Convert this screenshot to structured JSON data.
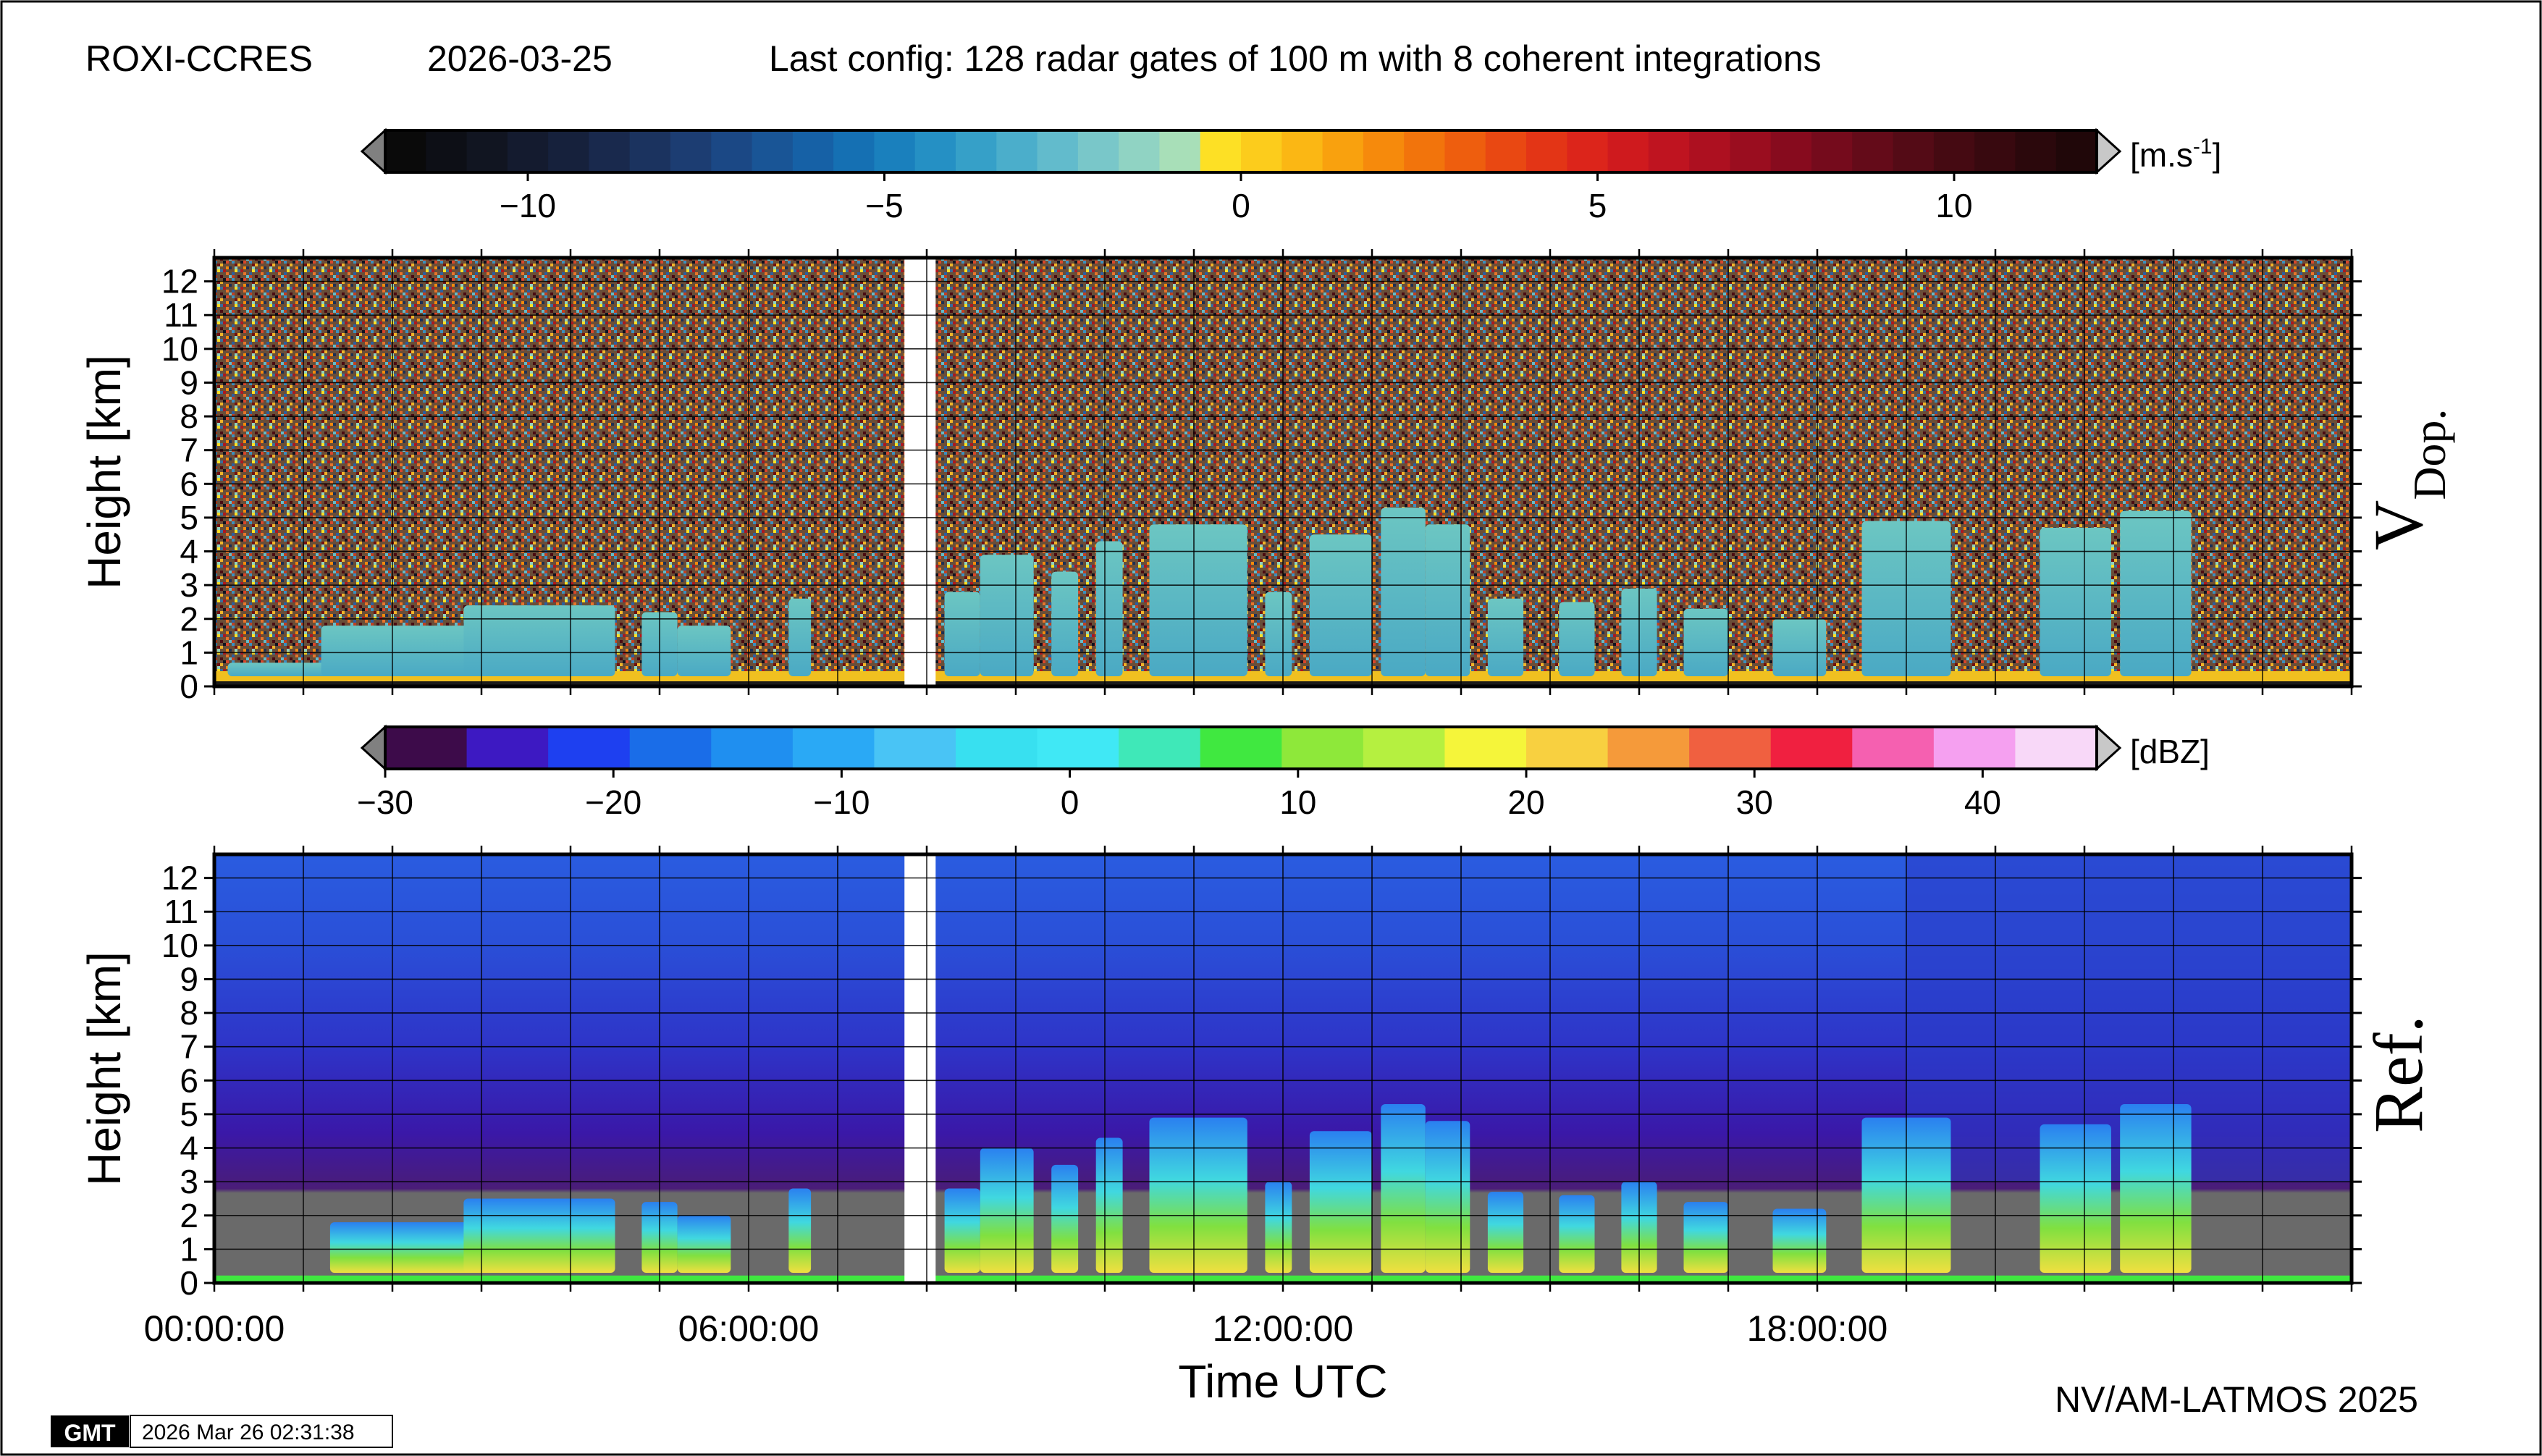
{
  "header": {
    "station": "ROXI-CCRES",
    "date": "2026-03-25",
    "config": "Last config: 128 radar gates of 100 m with 8 coherent integrations"
  },
  "colorbars": [
    {
      "unit": "[m.s",
      "unit_sup": "-1",
      "unit_close": "]",
      "range": [
        -12,
        12
      ],
      "tick_values": [
        -10,
        -5,
        0,
        5,
        10
      ],
      "tick_labels": [
        "−10",
        "−5",
        "0",
        "5",
        "10"
      ],
      "colors": [
        "#0a0a0a",
        "#0d0f16",
        "#111521",
        "#141b2f",
        "#16213c",
        "#19294d",
        "#1b335f",
        "#1c3d72",
        "#1b4885",
        "#195596",
        "#1661a6",
        "#1570b3",
        "#1a80bd",
        "#2590c4",
        "#36a0c8",
        "#4baecb",
        "#62bbcc",
        "#79c7c9",
        "#90d3c3",
        "#a8dfb8",
        "#fde025",
        "#fccc1c",
        "#fbb714",
        "#f9a10e",
        "#f68a0c",
        "#f2740c",
        "#ee5e0e",
        "#e94812",
        "#e33516",
        "#dc251b",
        "#cf1a1e",
        "#bf1420",
        "#ad1020",
        "#9a0d1f",
        "#870b1e",
        "#750b1c",
        "#640b19",
        "#540b16",
        "#450a12",
        "#38090f",
        "#2b080c",
        "#200709"
      ],
      "under_color": "#808080",
      "over_color": "#c8c8c8"
    },
    {
      "unit": "[dBZ]",
      "range": [
        -30,
        45
      ],
      "tick_values": [
        -30,
        -20,
        -10,
        0,
        10,
        20,
        30,
        40
      ],
      "tick_labels": [
        "−30",
        "−20",
        "−10",
        "0",
        "10",
        "20",
        "30",
        "40"
      ],
      "colors": [
        "#3d0b4a",
        "#3d19c2",
        "#1e40f0",
        "#1a6de8",
        "#1f8ff0",
        "#2aa9f5",
        "#49c4f5",
        "#38e0f0",
        "#40e8f5",
        "#3fe8b8",
        "#40e840",
        "#8ee83a",
        "#b5f040",
        "#f5f53a",
        "#f8d040",
        "#f59a3a",
        "#f06040",
        "#f02040",
        "#f560b0",
        "#f5a0f0",
        "#f8d8f8"
      ],
      "under_color": "#808080",
      "over_color": "#c8c8c8"
    }
  ],
  "chart_data": [
    {
      "type": "heatmap",
      "quantity": "V Dop.",
      "side_label": "V",
      "side_label_sub": "Dop.",
      "ylabel": "Height [km]",
      "yticks": [
        "0",
        "1",
        "2",
        "3",
        "4",
        "5",
        "6",
        "7",
        "8",
        "9",
        "10",
        "11",
        "12"
      ],
      "ylim": [
        0,
        12.7
      ],
      "xlim_hours": [
        0,
        24
      ],
      "unit": "m.s-1",
      "data_gap_hours": [
        7.75,
        8.1
      ],
      "background": "noise",
      "cloud_columns": [
        {
          "start": 0.15,
          "end": 3.6,
          "top": 0.7
        },
        {
          "start": 1.2,
          "end": 3.8,
          "top": 1.8
        },
        {
          "start": 2.8,
          "end": 4.5,
          "top": 2.4
        },
        {
          "start": 4.8,
          "end": 5.2,
          "top": 2.2
        },
        {
          "start": 5.2,
          "end": 5.8,
          "top": 1.8
        },
        {
          "start": 6.45,
          "end": 6.7,
          "top": 2.6
        },
        {
          "start": 8.2,
          "end": 8.6,
          "top": 2.8
        },
        {
          "start": 8.6,
          "end": 9.2,
          "top": 3.9
        },
        {
          "start": 9.4,
          "end": 9.7,
          "top": 3.4
        },
        {
          "start": 9.9,
          "end": 10.2,
          "top": 4.3
        },
        {
          "start": 10.5,
          "end": 11.6,
          "top": 4.8
        },
        {
          "start": 11.8,
          "end": 12.1,
          "top": 2.8
        },
        {
          "start": 12.3,
          "end": 13.0,
          "top": 4.5
        },
        {
          "start": 13.1,
          "end": 13.6,
          "top": 5.3
        },
        {
          "start": 13.6,
          "end": 14.1,
          "top": 4.8
        },
        {
          "start": 14.3,
          "end": 14.7,
          "top": 2.6
        },
        {
          "start": 15.1,
          "end": 15.5,
          "top": 2.5
        },
        {
          "start": 15.8,
          "end": 16.2,
          "top": 2.9
        },
        {
          "start": 16.5,
          "end": 17.0,
          "top": 2.3
        },
        {
          "start": 17.5,
          "end": 18.1,
          "top": 2.0
        },
        {
          "start": 18.5,
          "end": 19.5,
          "top": 4.9
        },
        {
          "start": 20.5,
          "end": 21.3,
          "top": 4.7
        },
        {
          "start": 21.4,
          "end": 22.2,
          "top": 5.2
        }
      ]
    },
    {
      "type": "heatmap",
      "quantity": "Ref.",
      "side_label": "Ref.",
      "ylabel": "Height [km]",
      "yticks": [
        "0",
        "1",
        "2",
        "3",
        "4",
        "5",
        "6",
        "7",
        "8",
        "9",
        "10",
        "11",
        "12"
      ],
      "ylim": [
        0,
        12.7
      ],
      "xlim_hours": [
        0,
        24
      ],
      "unit": "dBZ",
      "data_gap_hours": [
        7.75,
        8.1
      ],
      "background": "gradient",
      "cloud_columns": [
        {
          "start": 1.3,
          "end": 3.2,
          "top": 1.8
        },
        {
          "start": 2.8,
          "end": 4.5,
          "top": 2.5
        },
        {
          "start": 4.8,
          "end": 5.2,
          "top": 2.4
        },
        {
          "start": 5.2,
          "end": 5.8,
          "top": 2.0
        },
        {
          "start": 6.45,
          "end": 6.7,
          "top": 2.8
        },
        {
          "start": 8.2,
          "end": 8.6,
          "top": 2.8
        },
        {
          "start": 8.6,
          "end": 9.2,
          "top": 4.0
        },
        {
          "start": 9.4,
          "end": 9.7,
          "top": 3.5
        },
        {
          "start": 9.9,
          "end": 10.2,
          "top": 4.3
        },
        {
          "start": 10.5,
          "end": 11.6,
          "top": 4.9
        },
        {
          "start": 11.8,
          "end": 12.1,
          "top": 3.0
        },
        {
          "start": 12.3,
          "end": 13.0,
          "top": 4.5
        },
        {
          "start": 13.1,
          "end": 13.6,
          "top": 5.3
        },
        {
          "start": 13.6,
          "end": 14.1,
          "top": 4.8
        },
        {
          "start": 14.3,
          "end": 14.7,
          "top": 2.7
        },
        {
          "start": 15.1,
          "end": 15.5,
          "top": 2.6
        },
        {
          "start": 15.8,
          "end": 16.2,
          "top": 3.0
        },
        {
          "start": 16.5,
          "end": 17.0,
          "top": 2.4
        },
        {
          "start": 17.5,
          "end": 18.1,
          "top": 2.2
        },
        {
          "start": 18.5,
          "end": 19.5,
          "top": 4.9
        },
        {
          "start": 20.5,
          "end": 21.3,
          "top": 4.7
        },
        {
          "start": 21.4,
          "end": 22.2,
          "top": 5.3
        }
      ]
    }
  ],
  "xaxis": {
    "label": "Time UTC",
    "tick_hours": [
      0,
      6,
      12,
      18
    ],
    "tick_labels": [
      "00:00:00",
      "06:00:00",
      "12:00:00",
      "18:00:00"
    ]
  },
  "footer": {
    "credit": "NV/AM-LATMOS 2025",
    "logo": "GMT",
    "timestamp": "2026 Mar 26 02:31:38"
  }
}
